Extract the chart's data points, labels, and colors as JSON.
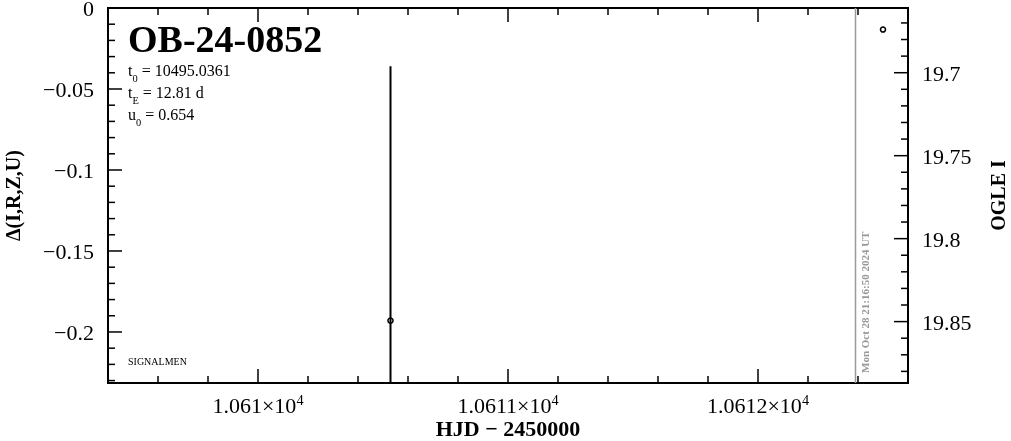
{
  "chart_data": {
    "type": "scatter",
    "title": "OB-24-0852",
    "xlabel": "HJD − 2450000",
    "ylabel": "Δ(I,R,Z,U)",
    "y2label": "OGLE I",
    "annotations": [
      "t$_{0}$ = 10495.0361",
      "t$_{E}$ = 12.81 d",
      "u$_{0}$ = 0.654",
      "SIGNALMEN",
      {
        "text": "Mon Oct 28 21:16:50 2024 UT",
        "x": 10612.39,
        "y": -0.2315
      }
    ],
    "xlim": [
      10609.4,
      10612.6
    ],
    "xticks": [
      {
        "value": 10609.4,
        "label": null
      },
      {
        "value": 10609.6,
        "label": null
      },
      {
        "value": 10609.8,
        "label": null
      },
      {
        "value": 10610,
        "label": "1.061×10$^{4}$"
      },
      {
        "value": 10610.2,
        "label": null
      },
      {
        "value": 10610.4,
        "label": null
      },
      {
        "value": 10610.6,
        "label": null
      },
      {
        "value": 10610.8,
        "label": null
      },
      {
        "value": 10611,
        "label": "1.0611×10$^{4}$"
      },
      {
        "value": 10611.2,
        "label": null
      },
      {
        "value": 10611.4,
        "label": null
      },
      {
        "value": 10611.6,
        "label": null
      },
      {
        "value": 10611.8,
        "label": null
      },
      {
        "value": 10612,
        "label": "1.0612×10$^{4}$"
      },
      {
        "value": 10612.2,
        "label": null
      },
      {
        "value": 10612.4,
        "label": null
      },
      {
        "value": 10612.6,
        "label": null
      }
    ],
    "ylim": [
      -0.2315,
      0
    ],
    "yticks": [
      0,
      {
        "value": -0.01,
        "label": null
      },
      {
        "value": -0.02,
        "label": null
      },
      {
        "value": -0.03,
        "label": null
      },
      {
        "value": -0.04,
        "label": null
      },
      -0.05,
      {
        "value": -0.06,
        "label": null
      },
      {
        "value": -0.07,
        "label": null
      },
      {
        "value": -0.08,
        "label": null
      },
      {
        "value": -0.09,
        "label": null
      },
      -0.1,
      {
        "value": -0.11,
        "label": null
      },
      {
        "value": -0.12,
        "label": null
      },
      {
        "value": -0.13,
        "label": null
      },
      {
        "value": -0.14,
        "label": null
      },
      -0.15,
      {
        "value": -0.16,
        "label": null
      },
      {
        "value": -0.17,
        "label": null
      },
      {
        "value": -0.18,
        "label": null
      },
      {
        "value": -0.19,
        "label": null
      },
      -0.2,
      {
        "value": -0.21,
        "label": null
      },
      {
        "value": -0.22,
        "label": null
      },
      {
        "value": -0.23,
        "label": null
      }
    ],
    "y2lim": [
      19.887,
      19.661
    ],
    "y2ticks": [
      {
        "value": 19.67,
        "label": null
      },
      {
        "value": 19.68,
        "label": null
      },
      {
        "value": 19.69,
        "label": null
      },
      19.7,
      {
        "value": 19.71,
        "label": null
      },
      {
        "value": 19.72,
        "label": null
      },
      {
        "value": 19.73,
        "label": null
      },
      {
        "value": 19.74,
        "label": null
      },
      19.75,
      {
        "value": 19.76,
        "label": null
      },
      {
        "value": 19.77,
        "label": null
      },
      {
        "value": 19.78,
        "label": null
      },
      {
        "value": 19.79,
        "label": null
      },
      19.8,
      {
        "value": 19.81,
        "label": null
      },
      {
        "value": 19.82,
        "label": null
      },
      {
        "value": 19.83,
        "label": null
      },
      {
        "value": 19.84,
        "label": null
      },
      19.85,
      {
        "value": 19.86,
        "label": null
      },
      {
        "value": 19.87,
        "label": null
      },
      {
        "value": 19.88,
        "label": null
      }
    ],
    "ref_lines": [
      {
        "axis": "x",
        "value": 10612.39,
        "color": "#999999"
      }
    ],
    "series": [
      {
        "x": [
          10610.53
        ],
        "values": [
          -0.193
        ],
        "errors": [
          [
            -0.2315,
            -0.036
          ]
        ],
        "color": "#000000",
        "marker": "circle"
      },
      {
        "axis": "y2",
        "x": [
          10612.5
        ],
        "values": [
          19.674
        ],
        "color": "#000000",
        "marker": "circle"
      }
    ]
  }
}
